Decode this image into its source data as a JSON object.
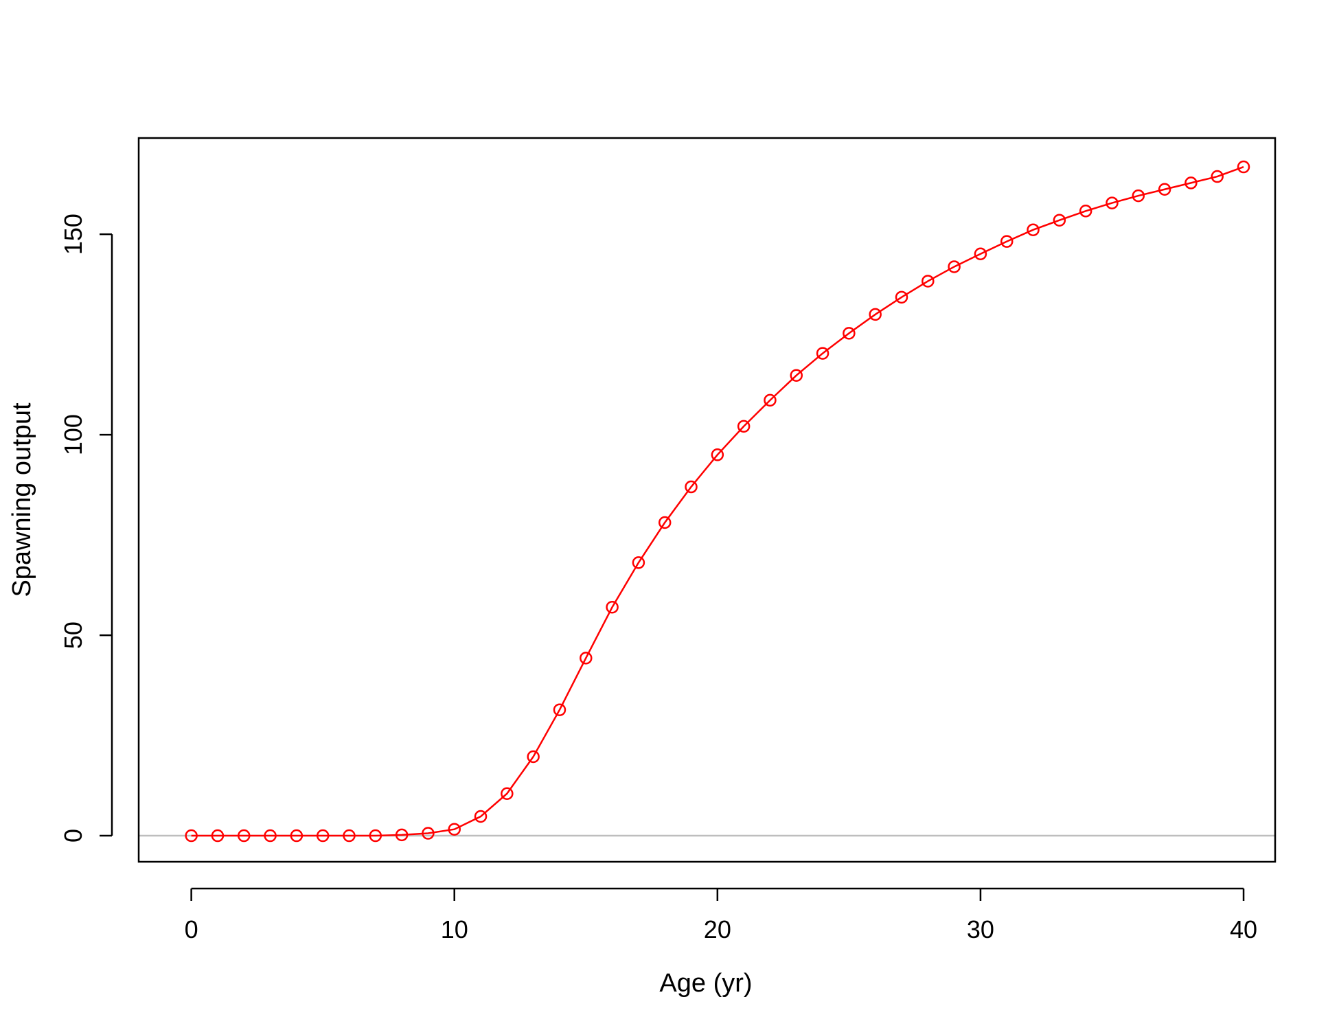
{
  "chart_data": {
    "type": "line",
    "title": "",
    "xlabel": "Age (yr)",
    "ylabel": "Spawning output",
    "xlim": [
      -2,
      41.2
    ],
    "ylim": [
      -6.5,
      174
    ],
    "x_ticks": [
      0,
      10,
      20,
      30,
      40
    ],
    "x_tick_labels": [
      "0",
      "10",
      "20",
      "30",
      "40"
    ],
    "y_ticks": [
      0,
      50,
      100,
      150
    ],
    "y_tick_labels": [
      "0",
      "50",
      "100",
      "150"
    ],
    "grid": false,
    "legend": "none",
    "reference_line": {
      "y": 0,
      "color": "#bebebe"
    },
    "series": [
      {
        "color": "#ff0000",
        "marker": "open-circle",
        "x": [
          0,
          1,
          2,
          3,
          4,
          5,
          6,
          7,
          8,
          9,
          10,
          11,
          12,
          13,
          14,
          15,
          16,
          17,
          18,
          19,
          20,
          21,
          22,
          23,
          24,
          25,
          26,
          27,
          28,
          29,
          30,
          31,
          32,
          33,
          34,
          35,
          36,
          37,
          38,
          39,
          40
        ],
        "y": [
          0,
          0,
          0,
          0,
          0,
          0,
          0,
          0,
          0.2,
          0.6,
          1.6,
          4.8,
          10.5,
          19.7,
          31.4,
          44.3,
          57.0,
          68.1,
          78.1,
          87.0,
          95.0,
          102.1,
          108.6,
          114.8,
          120.3,
          125.3,
          130.0,
          134.3,
          138.3,
          141.9,
          145.1,
          148.2,
          151.1,
          153.5,
          155.8,
          157.8,
          159.6,
          161.2,
          162.8,
          164.4,
          166.8
        ]
      }
    ]
  }
}
